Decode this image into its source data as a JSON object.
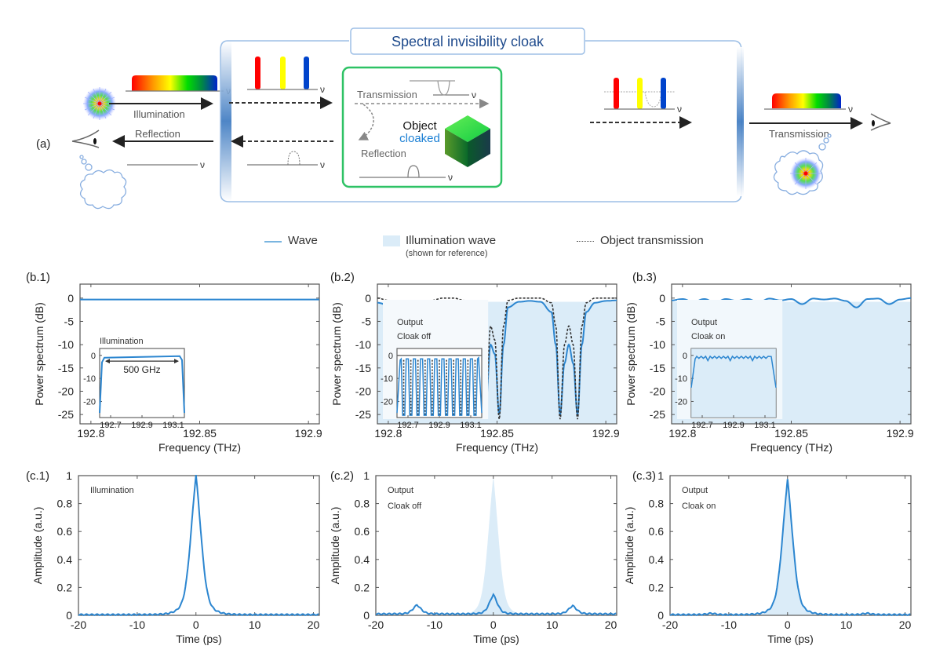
{
  "figure": {
    "panel_a": {
      "label": "(a)",
      "cloak_title": "Spectral invisibility cloak",
      "illumination_label": "Illumination",
      "reflection_label": "Reflection",
      "transmission_label": "Transmission",
      "inner_transmission_label": "Transmission",
      "inner_reflection_label": "Reflection",
      "object_label": "Object",
      "object_state": "cloaked",
      "nu_symbol": "ν",
      "colors": {
        "cloak_border": "#8fb6e0",
        "cloak_title": "#1e4a8c",
        "object_box": "#2ec265",
        "cloaked_text": "#1a7fd4",
        "red": "#ff0000",
        "yellow": "#ffff00",
        "blue": "#0033cc"
      }
    },
    "legend": {
      "wave": "Wave",
      "illumination_wave": "Illumination wave",
      "illumination_note": "(shown for reference)",
      "object_transmission": "Object transmission"
    }
  },
  "chart_data": [
    {
      "id": "b1",
      "panel": "(b.1)",
      "type": "line",
      "title": "",
      "xlabel": "Frequency (THz)",
      "ylabel": "Power spectrum (dB)",
      "xlim": [
        192.795,
        192.905
      ],
      "ylim": [
        -27,
        3
      ],
      "xticks": [
        192.8,
        192.85,
        192.9
      ],
      "xtick_labels": [
        "192.8",
        "192.85",
        "192.9"
      ],
      "yticks": [
        0,
        -5,
        -10,
        -15,
        -20,
        -25
      ],
      "ytick_labels": [
        "0",
        "-5",
        "-10",
        "-15",
        "-20",
        "-25"
      ],
      "series": [
        {
          "name": "Wave",
          "x": [
            192.795,
            192.905
          ],
          "y": [
            -0.3,
            -0.3
          ]
        }
      ],
      "inset": {
        "label": "Illumination",
        "xticks": [
          192.7,
          192.9,
          193.1
        ],
        "xtick_labels": [
          "192.7",
          "192.9",
          "193.1"
        ],
        "yticks": [
          0,
          -10,
          -20
        ],
        "ytick_labels": [
          "0",
          "-10",
          "-20"
        ],
        "xlim": [
          192.63,
          193.17
        ],
        "ylim": [
          -27,
          3
        ],
        "annotation": "500 GHz",
        "series": [
          {
            "name": "Wave",
            "x": [
              192.63,
              192.645,
              192.66,
              193.14,
              193.155,
              193.17
            ],
            "y": [
              -25,
              -3,
              -1,
              -0.3,
              -2,
              -25
            ]
          }
        ]
      }
    },
    {
      "id": "b2",
      "panel": "(b.2)",
      "type": "line",
      "xlabel": "Frequency (THz)",
      "ylabel": "Power spectrum (dB)",
      "xlim": [
        192.795,
        192.905
      ],
      "ylim": [
        -27,
        3
      ],
      "xticks": [
        192.8,
        192.85,
        192.9
      ],
      "xtick_labels": [
        "192.8",
        "192.85",
        "192.9"
      ],
      "yticks": [
        0,
        -5,
        -10,
        -15,
        -20,
        -25
      ],
      "ytick_labels": [
        "0",
        "-5",
        "-10",
        "-15",
        "-20",
        "-25"
      ],
      "illumination_level": -0.8,
      "series": [
        {
          "name": "Wave",
          "x": [
            192.795,
            192.8,
            192.805,
            192.81,
            192.815,
            192.82,
            192.825,
            192.83,
            192.835,
            192.84,
            192.845,
            192.847,
            192.849,
            192.851,
            192.853,
            192.855,
            192.86,
            192.865,
            192.87,
            192.875,
            192.877,
            192.879,
            192.881,
            192.883,
            192.885,
            192.887,
            192.889,
            192.891,
            192.895,
            192.9,
            192.905
          ],
          "y": [
            -1,
            -1.5,
            -20,
            -25,
            -18,
            -2,
            -1,
            -1,
            -2,
            -18,
            -22,
            -10,
            -12,
            -25,
            -10,
            -2,
            -0.8,
            -0.6,
            -0.8,
            -3,
            -10,
            -25,
            -14,
            -10,
            -14,
            -25,
            -10,
            -3,
            -1,
            -0.6,
            -0.5
          ]
        },
        {
          "name": "Object transmission",
          "x": [
            192.795,
            192.8,
            192.805,
            192.81,
            192.815,
            192.82,
            192.825,
            192.83,
            192.835,
            192.84,
            192.845,
            192.847,
            192.849,
            192.851,
            192.853,
            192.855,
            192.86,
            192.865,
            192.87,
            192.875,
            192.877,
            192.879,
            192.881,
            192.883,
            192.885,
            192.887,
            192.889,
            192.891,
            192.895,
            192.9,
            192.905
          ],
          "y": [
            0,
            -0.5,
            -15,
            -26,
            -12,
            -0.5,
            0,
            0,
            -0.5,
            -12,
            -22,
            -6,
            -9,
            -26,
            -6,
            -0.5,
            0,
            0,
            0,
            -1,
            -6,
            -26,
            -10,
            -6,
            -10,
            -26,
            -6,
            -1,
            0,
            0,
            0
          ]
        }
      ],
      "inset": {
        "label_line1": "Output",
        "label_line2": "Cloak off",
        "xticks": [
          192.7,
          192.9,
          193.1
        ],
        "xtick_labels": [
          "192.7",
          "192.9",
          "193.1"
        ],
        "yticks": [
          0,
          -10,
          -20
        ],
        "ytick_labels": [
          "0",
          "-10",
          "-20"
        ],
        "notch_count": 11
      }
    },
    {
      "id": "b3",
      "panel": "(b.3)",
      "type": "line",
      "xlabel": "Frequency (THz)",
      "ylabel": "Power spectrum (dB)",
      "xlim": [
        192.795,
        192.905
      ],
      "ylim": [
        -27,
        3
      ],
      "xticks": [
        192.8,
        192.85,
        192.9
      ],
      "xtick_labels": [
        "192.8",
        "192.85",
        "192.9"
      ],
      "yticks": [
        0,
        -5,
        -10,
        -15,
        -20,
        -25
      ],
      "ytick_labels": [
        "0",
        "-5",
        "-10",
        "-15",
        "-20",
        "-25"
      ],
      "illumination_level": -0.8,
      "series": [
        {
          "name": "Wave",
          "x": [
            192.795,
            192.8,
            192.805,
            192.81,
            192.815,
            192.82,
            192.825,
            192.83,
            192.835,
            192.84,
            192.845,
            192.85,
            192.855,
            192.86,
            192.865,
            192.87,
            192.875,
            192.88,
            192.885,
            192.89,
            192.895,
            192.9,
            192.905
          ],
          "y": [
            -0.5,
            -0.2,
            -0.8,
            -0.2,
            -0.9,
            -0.2,
            -0.6,
            -0.2,
            -0.9,
            -0.1,
            -0.5,
            -0.2,
            -1.3,
            -0.1,
            -0.3,
            -0.1,
            -0.6,
            -2.0,
            -0.2,
            -0.1,
            -1.3,
            -0.3,
            0
          ]
        }
      ],
      "inset": {
        "label_line1": "Output",
        "label_line2": "Cloak on",
        "xticks": [
          192.7,
          192.9,
          193.1
        ],
        "xtick_labels": [
          "192.7",
          "192.9",
          "193.1"
        ],
        "yticks": [
          0,
          -10,
          -20
        ],
        "ytick_labels": [
          "0",
          "-10",
          "-20"
        ]
      }
    },
    {
      "id": "c1",
      "panel": "(c.1)",
      "type": "line",
      "xlabel": "Time (ps)",
      "ylabel": "Amplitude (a.u.)",
      "annotation": "Illumination",
      "xlim": [
        -20,
        21
      ],
      "ylim": [
        0,
        1
      ],
      "xticks": [
        -20,
        -10,
        0,
        10,
        20
      ],
      "xtick_labels": [
        "-20",
        "-10",
        "0",
        "10",
        "20"
      ],
      "yticks": [
        0,
        0.2,
        0.4,
        0.6,
        0.8,
        1
      ],
      "ytick_labels": [
        "0",
        "0.2",
        "0.4",
        "0.6",
        "0.8",
        "1"
      ],
      "series": [
        {
          "name": "Wave",
          "peaks": [
            {
              "t": 0,
              "a": 1.0,
              "w": 1.2
            }
          ],
          "baseline": 0.005
        }
      ]
    },
    {
      "id": "c2",
      "panel": "(c.2)",
      "type": "line",
      "xlabel": "Time (ps)",
      "ylabel": "Amplitude (a.u.)",
      "annotation_line1": "Output",
      "annotation_line2": "Cloak off",
      "xlim": [
        -20,
        21
      ],
      "ylim": [
        0,
        1
      ],
      "xticks": [
        -20,
        -10,
        0,
        10,
        20
      ],
      "xtick_labels": [
        "-20",
        "-10",
        "0",
        "10",
        "20"
      ],
      "yticks": [
        0,
        0.2,
        0.4,
        0.6,
        0.8,
        1
      ],
      "ytick_labels": [
        "0",
        "0.2",
        "0.4",
        "0.6",
        "0.8",
        "1"
      ],
      "reference": {
        "peaks": [
          {
            "t": 0,
            "a": 1.0,
            "w": 1.2
          }
        ]
      },
      "series": [
        {
          "name": "Wave",
          "peaks": [
            {
              "t": -13,
              "a": 0.065,
              "w": 0.9
            },
            {
              "t": 0,
              "a": 0.14,
              "w": 0.9
            },
            {
              "t": 13.5,
              "a": 0.06,
              "w": 0.9
            }
          ],
          "baseline": 0.01
        }
      ]
    },
    {
      "id": "c3",
      "panel": "(c.3)",
      "type": "line",
      "xlabel": "Time (ps)",
      "ylabel": "Amplitude (a.u.)",
      "annotation_line1": "Output",
      "annotation_line2": "Cloak on",
      "xlim": [
        -20,
        21
      ],
      "ylim": [
        0,
        1
      ],
      "xticks": [
        -20,
        -10,
        0,
        10,
        20
      ],
      "xtick_labels": [
        "-20",
        "-10",
        "0",
        "10",
        "20"
      ],
      "yticks": [
        0,
        0.2,
        0.4,
        0.6,
        0.8,
        1
      ],
      "ytick_labels": [
        "0",
        "0.2",
        "0.4",
        "0.6",
        "0.8",
        "1"
      ],
      "reference": {
        "peaks": [
          {
            "t": 0,
            "a": 1.0,
            "w": 1.2
          }
        ]
      },
      "series": [
        {
          "name": "Wave",
          "peaks": [
            {
              "t": 0,
              "a": 0.97,
              "w": 1.2
            },
            {
              "t": -13,
              "a": 0.01,
              "w": 0.9
            },
            {
              "t": 13.5,
              "a": 0.01,
              "w": 0.9
            }
          ],
          "baseline": 0.005
        }
      ]
    }
  ]
}
